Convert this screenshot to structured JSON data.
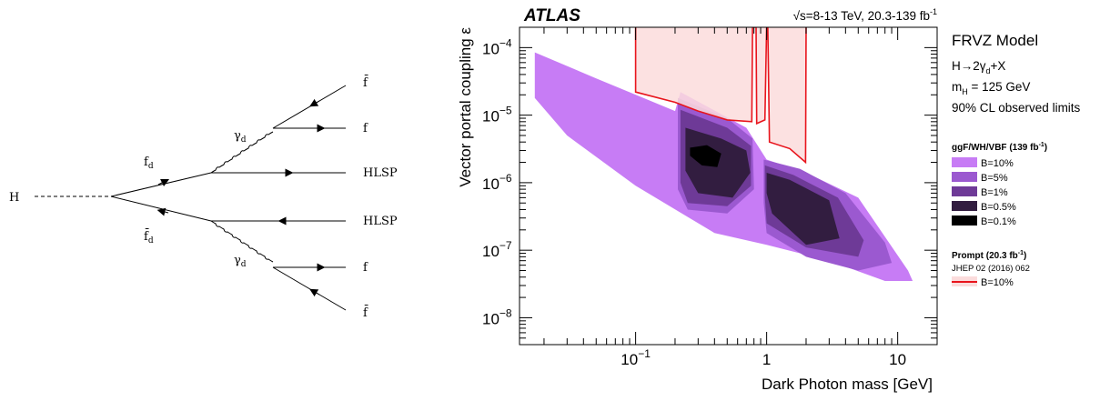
{
  "feynman": {
    "higgs": "H",
    "fd_top": "f",
    "fd_top_sub": "d",
    "fd_bottom": "f̄",
    "fd_bottom_sub": "d",
    "gamma_top": "γ",
    "gamma_top_sub": "d",
    "gamma_bottom": "γ",
    "gamma_bottom_sub": "d",
    "out_fbar_top": "f̄",
    "out_f_top": "f",
    "hlsp_top": "HLSP",
    "hlsp_bottom": "HLSP",
    "out_f_bottom": "f",
    "out_fbar_bottom": "f̄"
  },
  "plot": {
    "atlas_label": "ATLAS",
    "energy_label": "√s=8-13 TeV, 20.3-139 fb",
    "energy_sup": "-1",
    "model_title": "FRVZ Model",
    "model_lines": {
      "decay_pre": "H→2γ",
      "decay_sub": "d",
      "decay_post": "+X",
      "mass_pre": "m",
      "mass_sub": "H",
      "mass_post": " = 125 GeV",
      "cl": "90% CL observed limits"
    },
    "legend_ggf_title": "ggF/WH/VBF (139 fb",
    "legend_ggf_title_sup": "-1",
    "legend_ggf_title_end": ")",
    "legend_prompt_title": "Prompt (20.3 fb",
    "legend_prompt_title_sup": "-1",
    "legend_prompt_title_end": ")",
    "legend_prompt_ref": "JHEP 02 (2016) 062",
    "legend_prompt_entry": "B=10%",
    "colors": {
      "b10": "#c77cf5",
      "b5": "#9b59d0",
      "b1": "#6e3a97",
      "b05": "#321d40",
      "b01": "#000000",
      "prompt_line": "#e8141c",
      "prompt_fill": "#fbdcdc"
    }
  },
  "chart_data": {
    "type": "area",
    "xlabel": "Dark Photon mass [GeV]",
    "ylabel": "Vector portal coupling ε",
    "xscale": "log",
    "yscale": "log",
    "xlim": [
      0.013,
      20
    ],
    "ylim": [
      4e-09,
      0.0002
    ],
    "x_ticks": [
      {
        "value": 0.1,
        "base": "10",
        "exp": "−1"
      },
      {
        "value": 1,
        "base": "1",
        "exp": ""
      },
      {
        "value": 10,
        "base": "10",
        "exp": ""
      }
    ],
    "y_ticks": [
      {
        "value": 1e-08,
        "base": "10",
        "exp": "−8"
      },
      {
        "value": 1e-07,
        "base": "10",
        "exp": "−7"
      },
      {
        "value": 1e-06,
        "base": "10",
        "exp": "−6"
      },
      {
        "value": 1e-05,
        "base": "10",
        "exp": "−5"
      },
      {
        "value": 0.0001,
        "base": "10",
        "exp": "−4"
      }
    ],
    "series": [
      {
        "name": "B=10%",
        "color": "#c77cf5",
        "regions": [
          [
            [
              0.017,
              8.5e-05
            ],
            [
              0.05,
              3.5e-05
            ],
            [
              0.2,
              1.15e-05
            ],
            [
              0.22,
              2.2e-05
            ],
            [
              0.7,
              6.5e-06
            ],
            [
              1.0,
              2.2e-06
            ],
            [
              2,
              1.4e-06
            ],
            [
              5,
              6e-07
            ],
            [
              12,
              5e-08
            ],
            [
              13,
              3.5e-08
            ],
            [
              8,
              3.5e-08
            ],
            [
              3,
              7e-08
            ],
            [
              1.0,
              1.2e-07
            ],
            [
              0.4,
              1.8e-07
            ],
            [
              0.1,
              9e-07
            ],
            [
              0.03,
              5e-06
            ],
            [
              0.017,
              1.8e-05
            ]
          ]
        ]
      },
      {
        "name": "B=5%",
        "color": "#9b59d0",
        "regions": [
          [
            [
              0.21,
              1.8e-05
            ],
            [
              0.5,
              9e-06
            ],
            [
              0.78,
              4.5e-06
            ],
            [
              0.8,
              8e-07
            ],
            [
              0.5,
              3.5e-07
            ],
            [
              0.25,
              4e-07
            ],
            [
              0.21,
              8e-07
            ]
          ],
          [
            [
              0.95,
              2.2e-06
            ],
            [
              1.8,
              1.6e-06
            ],
            [
              4,
              7e-07
            ],
            [
              8,
              1.3e-07
            ],
            [
              9,
              6.5e-08
            ],
            [
              5,
              5e-08
            ],
            [
              2,
              8e-08
            ],
            [
              1.0,
              1.8e-07
            ],
            [
              0.95,
              5e-07
            ]
          ]
        ]
      },
      {
        "name": "B=1%",
        "color": "#6e3a97",
        "regions": [
          [
            [
              0.22,
              1.2e-05
            ],
            [
              0.5,
              6.5e-06
            ],
            [
              0.76,
              3.5e-06
            ],
            [
              0.76,
              9e-07
            ],
            [
              0.5,
              4.5e-07
            ],
            [
              0.25,
              5e-07
            ],
            [
              0.22,
              1e-06
            ]
          ],
          [
            [
              0.97,
              1.8e-06
            ],
            [
              1.6,
              1.3e-06
            ],
            [
              3.5,
              6e-07
            ],
            [
              5.5,
              1.4e-07
            ],
            [
              5,
              8e-08
            ],
            [
              2,
              1.1e-07
            ],
            [
              1.0,
              2.5e-07
            ],
            [
              0.97,
              6e-07
            ]
          ]
        ]
      },
      {
        "name": "B=0.5%",
        "color": "#321d40",
        "regions": [
          [
            [
              0.24,
              6.5e-06
            ],
            [
              0.45,
              4.5e-06
            ],
            [
              0.7,
              3e-06
            ],
            [
              0.75,
              1.4e-06
            ],
            [
              0.55,
              6e-07
            ],
            [
              0.3,
              7e-07
            ],
            [
              0.24,
              1.5e-06
            ]
          ],
          [
            [
              1.0,
              1.4e-06
            ],
            [
              1.5,
              1.1e-06
            ],
            [
              3.0,
              5.5e-07
            ],
            [
              3.6,
              1.5e-07
            ],
            [
              2,
              1.2e-07
            ],
            [
              1.1,
              3.5e-07
            ],
            [
              1.0,
              7e-07
            ]
          ]
        ]
      },
      {
        "name": "B=0.1%",
        "color": "#000000",
        "regions": [
          [
            [
              0.26,
              3.3e-06
            ],
            [
              0.35,
              3.6e-06
            ],
            [
              0.45,
              2.7e-06
            ],
            [
              0.42,
              1.7e-06
            ],
            [
              0.32,
              1.8e-06
            ],
            [
              0.26,
              2.5e-06
            ]
          ]
        ]
      },
      {
        "name": "Prompt B=10%",
        "color": "#e8141c",
        "line": true,
        "regions": [
          [
            [
              0.1,
              0.0002
            ],
            [
              0.1,
              2.2e-05
            ],
            [
              0.2,
              1.55e-05
            ],
            [
              0.24,
              1.35e-05
            ],
            [
              0.3,
              1.15e-05
            ],
            [
              0.5,
              8.5e-06
            ],
            [
              0.77,
              8e-06
            ],
            [
              0.78,
              0.0002
            ],
            [
              0.83,
              0.0002
            ],
            [
              0.84,
              7.5e-06
            ],
            [
              0.97,
              8.5e-06
            ],
            [
              1.0,
              0.0002
            ],
            [
              1.02,
              0.0002
            ],
            [
              1.05,
              4e-06
            ],
            [
              1.5,
              3.2e-06
            ],
            [
              1.98,
              2e-06
            ],
            [
              2.0,
              0.0002
            ]
          ]
        ]
      }
    ]
  }
}
